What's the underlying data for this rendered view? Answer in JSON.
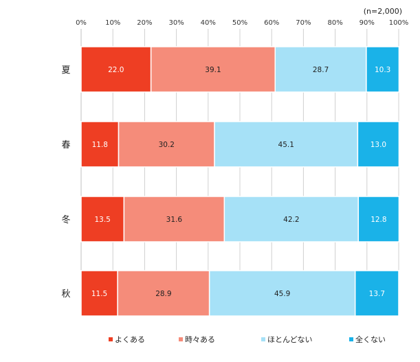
{
  "chart_data": {
    "type": "bar",
    "orientation": "horizontal",
    "stacked": true,
    "percent_stacked": true,
    "note": "(n=2,000)",
    "categories": [
      "夏",
      "春",
      "冬",
      "秋"
    ],
    "series": [
      {
        "name": "よくある",
        "color": "#ee3e23",
        "label_color": "#ffffff",
        "values": [
          22.0,
          11.8,
          13.5,
          11.5
        ]
      },
      {
        "name": "時々ある",
        "color": "#f58c7a",
        "label_color": "#222222",
        "values": [
          39.1,
          30.2,
          31.6,
          28.9
        ]
      },
      {
        "name": "ほとんどない",
        "color": "#a6e1f7",
        "label_color": "#222222",
        "values": [
          28.7,
          45.1,
          42.2,
          45.9
        ]
      },
      {
        "name": "全くない",
        "color": "#1ab2e8",
        "label_color": "#ffffff",
        "values": [
          10.3,
          13.0,
          12.8,
          13.7
        ]
      }
    ],
    "x_ticks": [
      "0%",
      "10%",
      "20%",
      "30%",
      "40%",
      "50%",
      "60%",
      "70%",
      "80%",
      "90%",
      "100%"
    ],
    "xlim": [
      0,
      100
    ],
    "grid": true,
    "legend": "bottom"
  }
}
